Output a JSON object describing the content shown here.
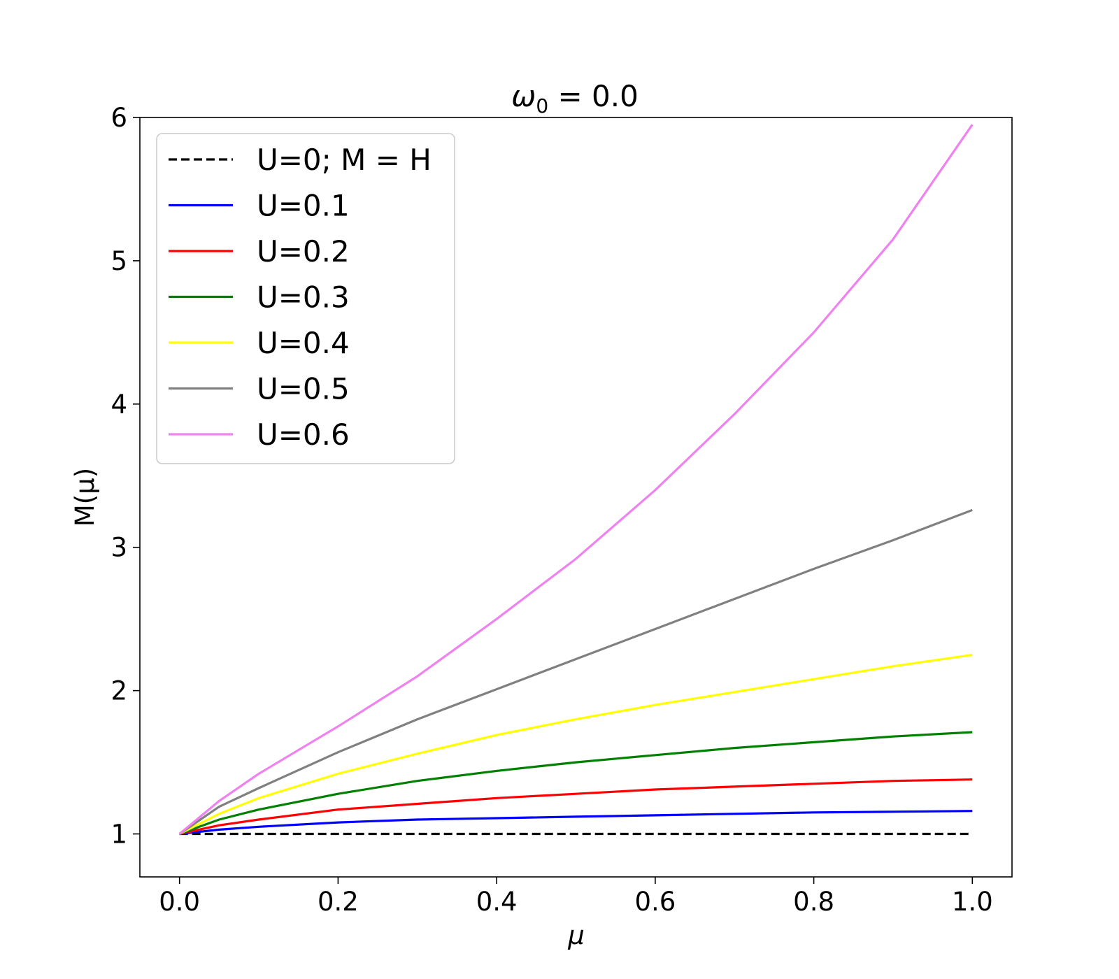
{
  "chart_data": {
    "type": "line",
    "title_symbol": "ω",
    "title_subscript": "0",
    "title_rest": " = 0.0",
    "xlabel": "μ",
    "ylabel": "M(μ)",
    "xlim": [
      -0.05,
      1.05
    ],
    "ylim": [
      0.7,
      6.0
    ],
    "xticks": [
      0.0,
      0.2,
      0.4,
      0.6,
      0.8,
      1.0
    ],
    "xtick_labels": [
      "0.0",
      "0.2",
      "0.4",
      "0.6",
      "0.8",
      "1.0"
    ],
    "yticks": [
      1,
      2,
      3,
      4,
      5,
      6
    ],
    "ytick_labels": [
      "1",
      "2",
      "3",
      "4",
      "5",
      "6"
    ],
    "grid": false,
    "legend_position": "upper-left",
    "x": [
      0.0,
      0.05,
      0.1,
      0.2,
      0.3,
      0.4,
      0.5,
      0.6,
      0.7,
      0.8,
      0.9,
      1.0
    ],
    "series": [
      {
        "name": "U=0; M = H",
        "color": "#000000",
        "dashed": true,
        "values": [
          1.0,
          1.0,
          1.0,
          1.0,
          1.0,
          1.0,
          1.0,
          1.0,
          1.0,
          1.0,
          1.0,
          1.0
        ]
      },
      {
        "name": "U=0.1",
        "color": "#0000ff",
        "dashed": false,
        "values": [
          1.0,
          1.03,
          1.05,
          1.08,
          1.1,
          1.11,
          1.12,
          1.13,
          1.14,
          1.15,
          1.155,
          1.16
        ]
      },
      {
        "name": "U=0.2",
        "color": "#ff0000",
        "dashed": false,
        "values": [
          1.0,
          1.06,
          1.1,
          1.17,
          1.21,
          1.25,
          1.28,
          1.31,
          1.33,
          1.35,
          1.37,
          1.38
        ]
      },
      {
        "name": "U=0.3",
        "color": "#008000",
        "dashed": false,
        "values": [
          1.0,
          1.1,
          1.17,
          1.28,
          1.37,
          1.44,
          1.5,
          1.55,
          1.6,
          1.64,
          1.68,
          1.71
        ]
      },
      {
        "name": "U=0.4",
        "color": "#ffff00",
        "dashed": false,
        "values": [
          1.0,
          1.14,
          1.25,
          1.42,
          1.56,
          1.69,
          1.8,
          1.9,
          1.99,
          2.08,
          2.17,
          2.25
        ]
      },
      {
        "name": "U=0.5",
        "color": "#808080",
        "dashed": false,
        "values": [
          1.0,
          1.19,
          1.32,
          1.57,
          1.8,
          2.01,
          2.22,
          2.43,
          2.64,
          2.85,
          3.05,
          3.26
        ]
      },
      {
        "name": "U=0.6",
        "color": "#ee82ee",
        "dashed": false,
        "values": [
          1.0,
          1.23,
          1.42,
          1.75,
          2.1,
          2.5,
          2.92,
          3.4,
          3.93,
          4.5,
          5.15,
          5.95
        ]
      }
    ]
  }
}
